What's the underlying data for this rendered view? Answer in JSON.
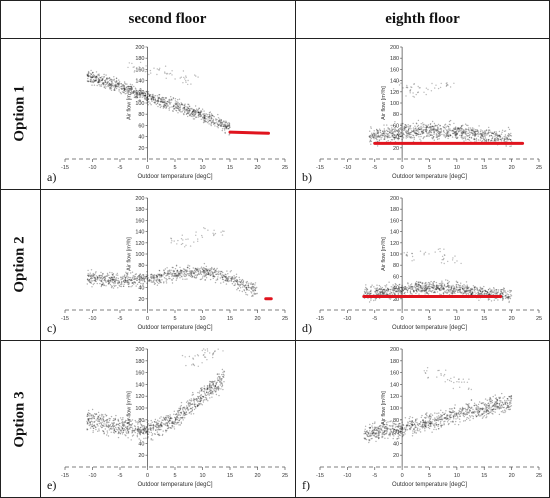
{
  "column_headers": [
    "second floor",
    "eighth floor"
  ],
  "row_headers": [
    "Option 1",
    "Option 2",
    "Option 3"
  ],
  "colors": {
    "cloud": "#1a1a1a",
    "highlight": "#e0141e",
    "axis": "#555555"
  },
  "chart_data": [
    {
      "panel": "a)",
      "type": "scatter",
      "row": "Option 1",
      "column": "second floor",
      "xlabel": "Outdoor temperature [degC]",
      "ylabel": "Air flow [m³/h]",
      "xlim": [
        -15,
        25
      ],
      "ylim": [
        0,
        200
      ],
      "xticks": [
        -15,
        -10,
        -5,
        0,
        5,
        10,
        15,
        20,
        25
      ],
      "yticks": [
        20,
        40,
        60,
        80,
        100,
        120,
        140,
        160,
        180,
        200
      ],
      "trend": [
        [
          -11,
          148
        ],
        [
          -5,
          130
        ],
        [
          0,
          110
        ],
        [
          5,
          95
        ],
        [
          10,
          78
        ],
        [
          15,
          55
        ]
      ],
      "spread": 17,
      "outliers": [
        [
          -2,
          165
        ],
        [
          2,
          160
        ],
        [
          5,
          150
        ],
        [
          8,
          140
        ]
      ],
      "highlight": {
        "x": [
          15,
          22
        ],
        "y": [
          48,
          46
        ]
      }
    },
    {
      "panel": "b)",
      "type": "scatter",
      "row": "Option 1",
      "column": "eighth floor",
      "xlabel": "Outdoor temperature [degC]",
      "ylabel": "Air flow [m³/h]",
      "xlim": [
        -15,
        25
      ],
      "ylim": [
        0,
        200
      ],
      "xticks": [
        -15,
        -10,
        -5,
        0,
        5,
        10,
        15,
        20,
        25
      ],
      "yticks": [
        20,
        40,
        60,
        80,
        100,
        120,
        140,
        160,
        180,
        200
      ],
      "trend": [
        [
          -6,
          40
        ],
        [
          0,
          48
        ],
        [
          5,
          52
        ],
        [
          10,
          48
        ],
        [
          15,
          42
        ],
        [
          20,
          35
        ]
      ],
      "spread": 22,
      "outliers": [
        [
          0,
          130
        ],
        [
          4,
          125
        ],
        [
          8,
          135
        ],
        [
          2,
          120
        ]
      ],
      "highlight": {
        "x": [
          -5,
          22
        ],
        "y": [
          28,
          28
        ]
      }
    },
    {
      "panel": "c)",
      "type": "scatter",
      "row": "Option 2",
      "column": "second floor",
      "xlabel": "Outdoor temperature [degC]",
      "ylabel": "Air flow [m³/h]",
      "xlim": [
        -15,
        25
      ],
      "ylim": [
        0,
        200
      ],
      "xticks": [
        -15,
        -10,
        -5,
        0,
        5,
        10,
        15,
        20,
        25
      ],
      "yticks": [
        20,
        40,
        60,
        80,
        100,
        120,
        140,
        160,
        180,
        200
      ],
      "trend": [
        [
          -11,
          58
        ],
        [
          -5,
          52
        ],
        [
          0,
          55
        ],
        [
          5,
          65
        ],
        [
          10,
          70
        ],
        [
          15,
          55
        ],
        [
          20,
          32
        ]
      ],
      "spread": 18,
      "outliers": [
        [
          8,
          130
        ],
        [
          12,
          140
        ],
        [
          6,
          120
        ]
      ],
      "highlight": {
        "x": [
          21.5,
          22.5
        ],
        "y": [
          20,
          20
        ]
      }
    },
    {
      "panel": "d)",
      "type": "scatter",
      "row": "Option 2",
      "column": "eighth floor",
      "xlabel": "Outdoor temperature [degC]",
      "ylabel": "Air flow [m³/h]",
      "xlim": [
        -15,
        25
      ],
      "ylim": [
        0,
        200
      ],
      "xticks": [
        -15,
        -10,
        -5,
        0,
        5,
        10,
        15,
        20,
        25
      ],
      "yticks": [
        20,
        40,
        60,
        80,
        100,
        120,
        140,
        160,
        180,
        200
      ],
      "trend": [
        [
          -7,
          28
        ],
        [
          0,
          35
        ],
        [
          5,
          40
        ],
        [
          10,
          38
        ],
        [
          15,
          30
        ],
        [
          20,
          25
        ]
      ],
      "spread": 18,
      "outliers": [
        [
          2,
          95
        ],
        [
          6,
          100
        ],
        [
          9,
          90
        ]
      ],
      "highlight": {
        "x": [
          -7,
          18
        ],
        "y": [
          24,
          24
        ]
      }
    },
    {
      "panel": "e)",
      "type": "scatter",
      "row": "Option 3",
      "column": "second floor",
      "xlabel": "Outdoor temperature [degC]",
      "ylabel": "Air flow [m³/h]",
      "xlim": [
        -15,
        25
      ],
      "ylim": [
        0,
        200
      ],
      "xticks": [
        -15,
        -10,
        -5,
        0,
        5,
        10,
        15,
        20,
        25
      ],
      "yticks": [
        20,
        40,
        60,
        80,
        100,
        120,
        140,
        160,
        180,
        200
      ],
      "trend": [
        [
          -11,
          78
        ],
        [
          -5,
          68
        ],
        [
          0,
          62
        ],
        [
          5,
          80
        ],
        [
          10,
          120
        ],
        [
          14,
          150
        ]
      ],
      "spread": 24,
      "outliers": [
        [
          8,
          180
        ],
        [
          10,
          190
        ],
        [
          12,
          195
        ]
      ],
      "highlight": null
    },
    {
      "panel": "f)",
      "type": "scatter",
      "row": "Option 3",
      "column": "eighth floor",
      "xlabel": "Outdoor temperature [degC]",
      "ylabel": "Air flow [m³/h]",
      "xlim": [
        -15,
        25
      ],
      "ylim": [
        0,
        200
      ],
      "xticks": [
        -15,
        -10,
        -5,
        0,
        5,
        10,
        15,
        20,
        25
      ],
      "yticks": [
        20,
        40,
        60,
        80,
        100,
        120,
        140,
        160,
        180,
        200
      ],
      "trend": [
        [
          -7,
          55
        ],
        [
          0,
          65
        ],
        [
          5,
          75
        ],
        [
          10,
          90
        ],
        [
          15,
          100
        ],
        [
          20,
          110
        ]
      ],
      "spread": 22,
      "outliers": [
        [
          6,
          160
        ],
        [
          9,
          150
        ],
        [
          11,
          140
        ]
      ],
      "highlight": null
    }
  ]
}
